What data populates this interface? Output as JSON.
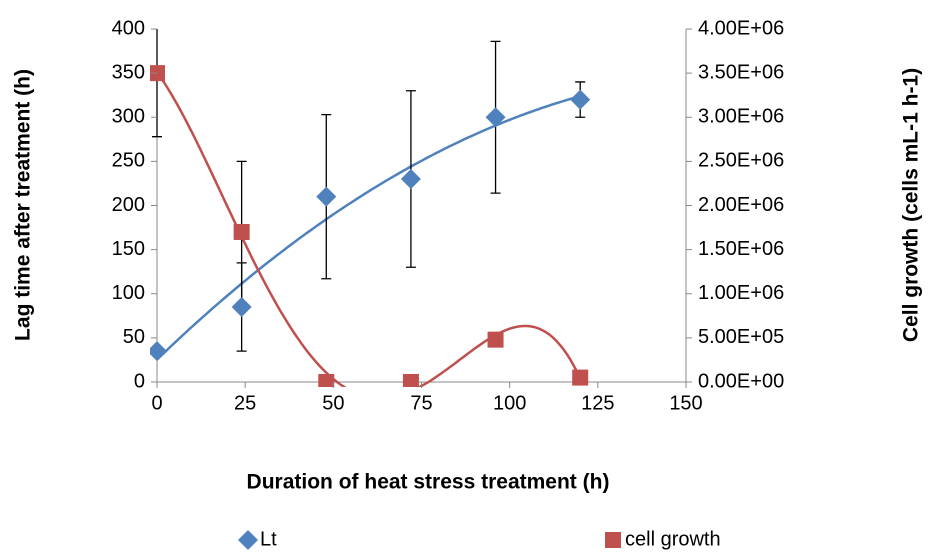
{
  "chart_data": {
    "type": "scatter",
    "x_label": "Duration of heat stress treatment (h)",
    "y_label": "Lag time after treatment (h)",
    "y2_label": "Cell growth (cells mL-1 h-1)",
    "x": [
      0,
      24,
      48,
      72,
      96,
      120
    ],
    "series": [
      {
        "name": "Lt",
        "color": "#4f81bd",
        "marker": "diamond",
        "trendline_order": 2,
        "values": [
          35,
          85,
          210,
          230,
          300,
          320
        ],
        "errors": [
          0,
          50,
          93,
          100,
          86,
          20
        ]
      },
      {
        "name": "cell growth",
        "color": "#c0504d",
        "marker": "square",
        "axis": "y2",
        "trendline_order": 4,
        "values": [
          3500000,
          1700000,
          0,
          0,
          480000,
          50000
        ],
        "errors": [
          720000,
          800000,
          0,
          0,
          0,
          0
        ]
      }
    ],
    "xlim": [
      0,
      150
    ],
    "xticks": [
      0,
      25,
      50,
      75,
      100,
      125,
      150
    ],
    "ylim": [
      0,
      400
    ],
    "yticks": [
      0,
      50,
      100,
      150,
      200,
      250,
      300,
      350,
      400
    ],
    "y2lim": [
      0,
      4000000
    ],
    "y2ticks": [
      {
        "value": 0,
        "label": "0.00E+00"
      },
      {
        "value": 500000,
        "label": "5.00E+05"
      },
      {
        "value": 1000000,
        "label": "1.00E+06"
      },
      {
        "value": 1500000,
        "label": "1.50E+06"
      },
      {
        "value": 2000000,
        "label": "2.00E+06"
      },
      {
        "value": 2500000,
        "label": "2.50E+06"
      },
      {
        "value": 3000000,
        "label": "3.00E+06"
      },
      {
        "value": 3500000,
        "label": "3.50E+06"
      },
      {
        "value": 4000000,
        "label": "4.00E+06"
      }
    ],
    "grid": false,
    "legend": "bottom"
  }
}
